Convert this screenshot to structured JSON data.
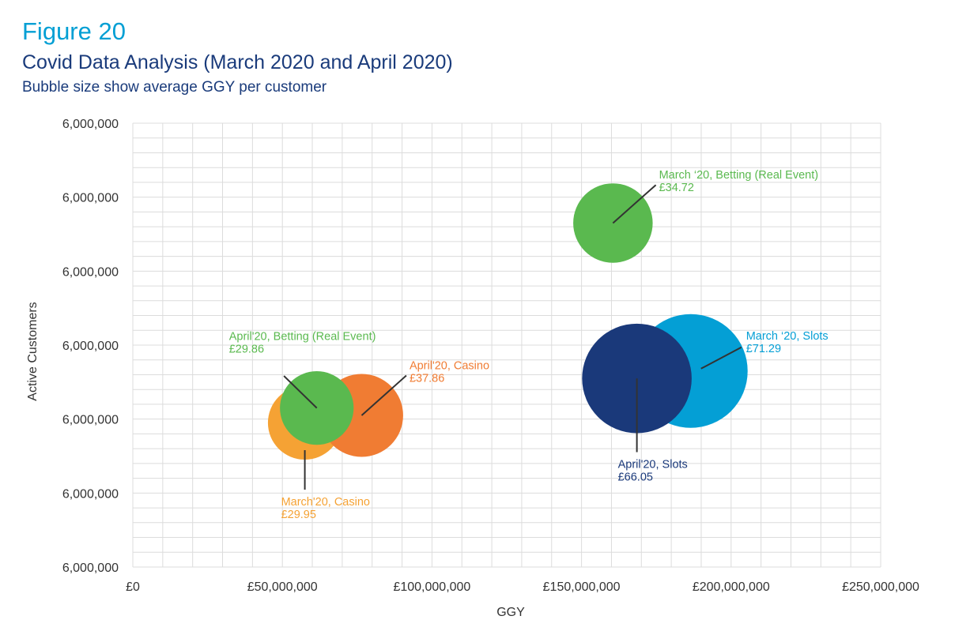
{
  "figure_label": "Figure 20",
  "chart_data": {
    "type": "bubble",
    "title": "Covid Data Analysis (March 2020 and April 2020)",
    "subtitle": "Bubble size show average GGY per customer",
    "xlabel": "GGY",
    "ylabel": "Active Customers",
    "xlim": [
      0,
      250000000
    ],
    "x_ticks": [
      0,
      50000000,
      100000000,
      150000000,
      200000000,
      250000000
    ],
    "x_tick_labels": [
      "£0",
      "£50,000,000",
      "£100,000,000",
      "£150,000,000",
      "£200,000,000",
      "£250,000,000"
    ],
    "ylim": [
      0,
      6
    ],
    "y_ticks": [
      0,
      1,
      2,
      3,
      4,
      5,
      6
    ],
    "y_tick_labels": [
      "6,000,000",
      "6,000,000",
      "6,000,000",
      "6,000,000",
      "6,000,000",
      "6,000,000",
      "6,000,000"
    ],
    "grid": true,
    "series": [
      {
        "name": "March'20, Casino",
        "label_line1": "March'20, Casino",
        "label_line2": "£29.95",
        "x": 57500000,
        "y": 1.95,
        "size": 29.95,
        "color": "#f5a234",
        "label_pos": "below"
      },
      {
        "name": "April'20, Casino",
        "label_line1": "April'20, Casino",
        "label_line2": "£37.86",
        "x": 76500000,
        "y": 2.05,
        "size": 37.86,
        "color": "#f07c33",
        "label_pos": "top-right"
      },
      {
        "name": "April'20, Betting (Real Event)",
        "label_line1": "April'20, Betting (Real Event)",
        "label_line2": "£29.86",
        "x": 61500000,
        "y": 2.15,
        "size": 29.86,
        "color": "#5ab94f",
        "label_pos": "top-left"
      },
      {
        "name": "March '20, Betting (Real Event)",
        "label_line1": "March ‘20, Betting (Real Event)",
        "label_line2": "£34.72",
        "x": 160500000,
        "y": 4.65,
        "size": 34.72,
        "color": "#5ab94f",
        "label_pos": "top-right"
      },
      {
        "name": "March '20, Slots",
        "label_line1": "March ‘20, Slots",
        "label_line2": "£71.29",
        "x": 186500000,
        "y": 2.65,
        "size": 71.29,
        "color": "#049fd5",
        "label_pos": "right"
      },
      {
        "name": "April'20, Slots",
        "label_line1": "April'20, Slots",
        "label_line2": "£66.05",
        "x": 168500000,
        "y": 2.55,
        "size": 66.05,
        "color": "#1a397a",
        "label_pos": "below"
      }
    ]
  }
}
